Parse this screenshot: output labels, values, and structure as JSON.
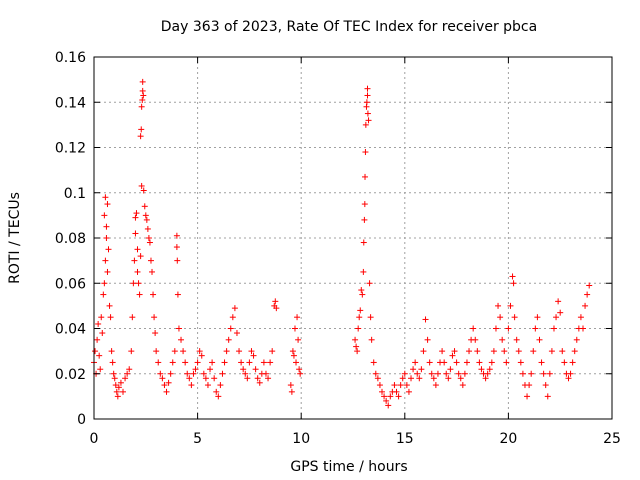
{
  "chart_data": {
    "type": "scatter",
    "title": "Day 363 of 2023, Rate Of TEC Index for receiver pbca",
    "xlabel": "GPS time / hours",
    "ylabel": "ROTI / TECUs",
    "xlim": [
      0,
      25
    ],
    "ylim": [
      0,
      0.16
    ],
    "x_ticks": [
      "0",
      "5",
      "10",
      "15",
      "20",
      "25"
    ],
    "y_ticks": [
      "0",
      "0.02",
      "0.04",
      "0.06",
      "0.08",
      "0.1",
      "0.12",
      "0.14",
      "0.16"
    ],
    "grid": true,
    "marker": "+",
    "color": "#ff0000",
    "series": [
      {
        "points": [
          [
            0.0,
            0.025
          ],
          [
            0.05,
            0.03
          ],
          [
            0.1,
            0.02
          ],
          [
            0.15,
            0.035
          ],
          [
            0.2,
            0.042
          ],
          [
            0.25,
            0.028
          ],
          [
            0.3,
            0.022
          ],
          [
            0.35,
            0.045
          ],
          [
            0.4,
            0.038
          ],
          [
            0.45,
            0.055
          ],
          [
            0.5,
            0.06
          ],
          [
            0.5,
            0.09
          ],
          [
            0.55,
            0.07
          ],
          [
            0.55,
            0.098
          ],
          [
            0.6,
            0.08
          ],
          [
            0.6,
            0.085
          ],
          [
            0.65,
            0.095
          ],
          [
            0.65,
            0.065
          ],
          [
            0.7,
            0.075
          ],
          [
            0.75,
            0.05
          ],
          [
            0.8,
            0.045
          ],
          [
            0.85,
            0.03
          ],
          [
            0.9,
            0.025
          ],
          [
            0.95,
            0.02
          ],
          [
            1.0,
            0.018
          ],
          [
            1.05,
            0.015
          ],
          [
            1.1,
            0.012
          ],
          [
            1.15,
            0.01
          ],
          [
            1.2,
            0.014
          ],
          [
            1.3,
            0.016
          ],
          [
            1.4,
            0.012
          ],
          [
            1.5,
            0.018
          ],
          [
            1.6,
            0.02
          ],
          [
            1.7,
            0.022
          ],
          [
            1.8,
            0.03
          ],
          [
            1.85,
            0.045
          ],
          [
            1.9,
            0.06
          ],
          [
            1.95,
            0.07
          ],
          [
            2.0,
            0.082
          ],
          [
            2.0,
            0.089
          ],
          [
            2.05,
            0.091
          ],
          [
            2.1,
            0.065
          ],
          [
            2.1,
            0.075
          ],
          [
            2.15,
            0.06
          ],
          [
            2.2,
            0.055
          ],
          [
            2.25,
            0.072
          ],
          [
            2.25,
            0.125
          ],
          [
            2.28,
            0.128
          ],
          [
            2.3,
            0.138
          ],
          [
            2.3,
            0.103
          ],
          [
            2.33,
            0.141
          ],
          [
            2.35,
            0.145
          ],
          [
            2.35,
            0.149
          ],
          [
            2.38,
            0.143
          ],
          [
            2.4,
            0.101
          ],
          [
            2.45,
            0.094
          ],
          [
            2.5,
            0.09
          ],
          [
            2.55,
            0.088
          ],
          [
            2.6,
            0.084
          ],
          [
            2.65,
            0.08
          ],
          [
            2.7,
            0.078
          ],
          [
            2.75,
            0.07
          ],
          [
            2.8,
            0.065
          ],
          [
            2.85,
            0.055
          ],
          [
            2.9,
            0.045
          ],
          [
            2.95,
            0.038
          ],
          [
            3.0,
            0.03
          ],
          [
            3.1,
            0.025
          ],
          [
            3.2,
            0.02
          ],
          [
            3.3,
            0.018
          ],
          [
            3.4,
            0.015
          ],
          [
            3.5,
            0.012
          ],
          [
            3.6,
            0.016
          ],
          [
            3.7,
            0.02
          ],
          [
            3.8,
            0.025
          ],
          [
            3.9,
            0.03
          ],
          [
            4.0,
            0.081
          ],
          [
            4.0,
            0.076
          ],
          [
            4.02,
            0.07
          ],
          [
            4.05,
            0.055
          ],
          [
            4.1,
            0.04
          ],
          [
            4.2,
            0.035
          ],
          [
            4.3,
            0.03
          ],
          [
            4.4,
            0.025
          ],
          [
            4.5,
            0.02
          ],
          [
            4.6,
            0.018
          ],
          [
            4.7,
            0.015
          ],
          [
            4.8,
            0.02
          ],
          [
            4.9,
            0.022
          ],
          [
            5.0,
            0.025
          ],
          [
            5.1,
            0.03
          ],
          [
            5.2,
            0.028
          ],
          [
            5.3,
            0.02
          ],
          [
            5.4,
            0.018
          ],
          [
            5.5,
            0.015
          ],
          [
            5.6,
            0.022
          ],
          [
            5.7,
            0.025
          ],
          [
            5.8,
            0.018
          ],
          [
            5.9,
            0.012
          ],
          [
            6.0,
            0.01
          ],
          [
            6.1,
            0.015
          ],
          [
            6.2,
            0.02
          ],
          [
            6.3,
            0.025
          ],
          [
            6.4,
            0.03
          ],
          [
            6.5,
            0.035
          ],
          [
            6.6,
            0.04
          ],
          [
            6.7,
            0.045
          ],
          [
            6.8,
            0.049
          ],
          [
            6.9,
            0.038
          ],
          [
            7.0,
            0.03
          ],
          [
            7.1,
            0.025
          ],
          [
            7.2,
            0.022
          ],
          [
            7.3,
            0.02
          ],
          [
            7.4,
            0.018
          ],
          [
            7.5,
            0.025
          ],
          [
            7.6,
            0.03
          ],
          [
            7.7,
            0.028
          ],
          [
            7.8,
            0.022
          ],
          [
            7.9,
            0.018
          ],
          [
            8.0,
            0.016
          ],
          [
            8.1,
            0.02
          ],
          [
            8.2,
            0.025
          ],
          [
            8.3,
            0.02
          ],
          [
            8.4,
            0.018
          ],
          [
            8.5,
            0.025
          ],
          [
            8.6,
            0.03
          ],
          [
            8.7,
            0.05
          ],
          [
            8.75,
            0.052
          ],
          [
            8.8,
            0.049
          ],
          [
            9.5,
            0.015
          ],
          [
            9.55,
            0.012
          ],
          [
            9.6,
            0.03
          ],
          [
            9.65,
            0.028
          ],
          [
            9.7,
            0.04
          ],
          [
            9.75,
            0.025
          ],
          [
            9.8,
            0.045
          ],
          [
            9.85,
            0.035
          ],
          [
            9.9,
            0.022
          ],
          [
            9.95,
            0.02
          ],
          [
            12.6,
            0.035
          ],
          [
            12.65,
            0.032
          ],
          [
            12.7,
            0.03
          ],
          [
            12.75,
            0.04
          ],
          [
            12.8,
            0.045
          ],
          [
            12.85,
            0.048
          ],
          [
            12.9,
            0.057
          ],
          [
            12.95,
            0.055
          ],
          [
            13.0,
            0.065
          ],
          [
            13.02,
            0.078
          ],
          [
            13.05,
            0.088
          ],
          [
            13.07,
            0.095
          ],
          [
            13.08,
            0.107
          ],
          [
            13.1,
            0.118
          ],
          [
            13.12,
            0.13
          ],
          [
            13.15,
            0.138
          ],
          [
            13.17,
            0.14
          ],
          [
            13.2,
            0.143
          ],
          [
            13.2,
            0.146
          ],
          [
            13.22,
            0.135
          ],
          [
            13.25,
            0.132
          ],
          [
            13.3,
            0.06
          ],
          [
            13.35,
            0.045
          ],
          [
            13.4,
            0.035
          ],
          [
            13.5,
            0.025
          ],
          [
            13.6,
            0.02
          ],
          [
            13.7,
            0.018
          ],
          [
            13.8,
            0.015
          ],
          [
            13.9,
            0.012
          ],
          [
            14.0,
            0.01
          ],
          [
            14.1,
            0.008
          ],
          [
            14.2,
            0.006
          ],
          [
            14.3,
            0.01
          ],
          [
            14.4,
            0.012
          ],
          [
            14.5,
            0.015
          ],
          [
            14.6,
            0.012
          ],
          [
            14.7,
            0.01
          ],
          [
            14.8,
            0.015
          ],
          [
            14.9,
            0.018
          ],
          [
            15.0,
            0.02
          ],
          [
            15.1,
            0.015
          ],
          [
            15.2,
            0.012
          ],
          [
            15.3,
            0.018
          ],
          [
            15.4,
            0.022
          ],
          [
            15.5,
            0.025
          ],
          [
            15.6,
            0.02
          ],
          [
            15.7,
            0.018
          ],
          [
            15.8,
            0.022
          ],
          [
            15.9,
            0.03
          ],
          [
            16.0,
            0.044
          ],
          [
            16.1,
            0.035
          ],
          [
            16.2,
            0.025
          ],
          [
            16.3,
            0.02
          ],
          [
            16.4,
            0.018
          ],
          [
            16.5,
            0.015
          ],
          [
            16.6,
            0.02
          ],
          [
            16.7,
            0.025
          ],
          [
            16.8,
            0.03
          ],
          [
            16.9,
            0.025
          ],
          [
            17.0,
            0.02
          ],
          [
            17.1,
            0.018
          ],
          [
            17.2,
            0.022
          ],
          [
            17.3,
            0.028
          ],
          [
            17.4,
            0.03
          ],
          [
            17.5,
            0.025
          ],
          [
            17.6,
            0.02
          ],
          [
            17.7,
            0.018
          ],
          [
            17.8,
            0.015
          ],
          [
            17.9,
            0.02
          ],
          [
            18.0,
            0.025
          ],
          [
            18.1,
            0.03
          ],
          [
            18.2,
            0.035
          ],
          [
            18.3,
            0.04
          ],
          [
            18.4,
            0.035
          ],
          [
            18.5,
            0.03
          ],
          [
            18.6,
            0.025
          ],
          [
            18.7,
            0.022
          ],
          [
            18.8,
            0.02
          ],
          [
            18.9,
            0.018
          ],
          [
            19.0,
            0.02
          ],
          [
            19.1,
            0.022
          ],
          [
            19.2,
            0.025
          ],
          [
            19.3,
            0.03
          ],
          [
            19.4,
            0.04
          ],
          [
            19.5,
            0.05
          ],
          [
            19.6,
            0.045
          ],
          [
            19.7,
            0.035
          ],
          [
            19.8,
            0.03
          ],
          [
            19.9,
            0.025
          ],
          [
            20.0,
            0.04
          ],
          [
            20.1,
            0.05
          ],
          [
            20.2,
            0.063
          ],
          [
            20.25,
            0.06
          ],
          [
            20.3,
            0.045
          ],
          [
            20.4,
            0.035
          ],
          [
            20.5,
            0.03
          ],
          [
            20.6,
            0.025
          ],
          [
            20.7,
            0.02
          ],
          [
            20.8,
            0.015
          ],
          [
            20.9,
            0.01
          ],
          [
            21.0,
            0.015
          ],
          [
            21.1,
            0.02
          ],
          [
            21.2,
            0.03
          ],
          [
            21.3,
            0.04
          ],
          [
            21.4,
            0.045
          ],
          [
            21.5,
            0.035
          ],
          [
            21.6,
            0.025
          ],
          [
            21.7,
            0.02
          ],
          [
            21.8,
            0.015
          ],
          [
            21.9,
            0.01
          ],
          [
            22.0,
            0.02
          ],
          [
            22.1,
            0.03
          ],
          [
            22.2,
            0.04
          ],
          [
            22.3,
            0.045
          ],
          [
            22.4,
            0.052
          ],
          [
            22.5,
            0.047
          ],
          [
            22.6,
            0.03
          ],
          [
            22.7,
            0.025
          ],
          [
            22.8,
            0.02
          ],
          [
            22.9,
            0.018
          ],
          [
            23.0,
            0.02
          ],
          [
            23.1,
            0.025
          ],
          [
            23.2,
            0.03
          ],
          [
            23.3,
            0.035
          ],
          [
            23.4,
            0.04
          ],
          [
            23.5,
            0.045
          ],
          [
            23.6,
            0.04
          ],
          [
            23.7,
            0.05
          ],
          [
            23.8,
            0.055
          ],
          [
            23.9,
            0.059
          ]
        ]
      }
    ]
  }
}
